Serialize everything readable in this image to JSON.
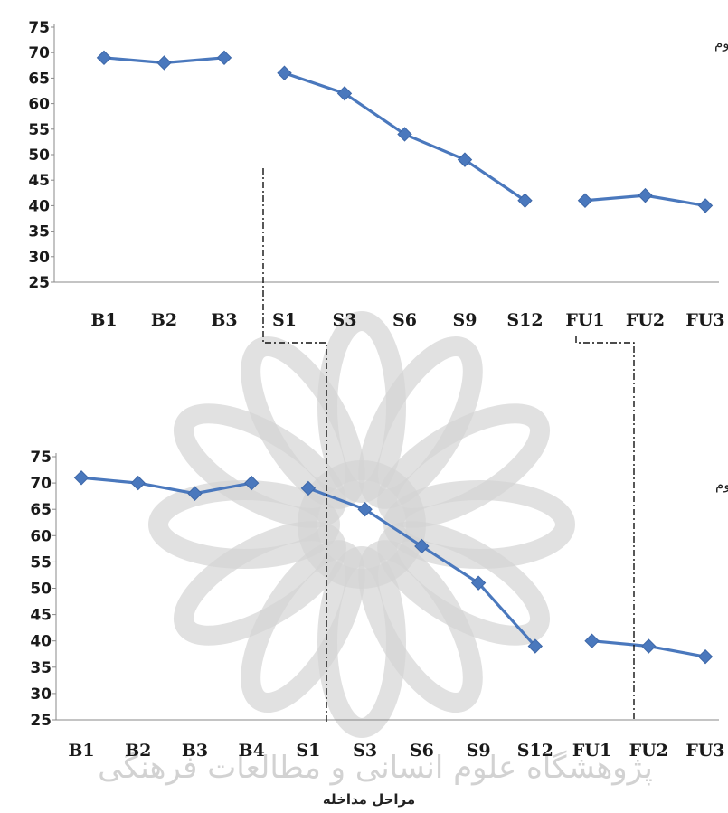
{
  "chart_data": [
    {
      "type": "line",
      "title": "بمار دوم",
      "ylim": [
        25,
        75
      ],
      "yticks": [
        75,
        70,
        65,
        60,
        55,
        50,
        45,
        40,
        35,
        30,
        25
      ],
      "categories": [
        "B1",
        "B2",
        "B3",
        "S1",
        "S3",
        "S6",
        "S9",
        "S12",
        "FU1",
        "FU2",
        "FU3"
      ],
      "segments": [
        {
          "categories": [
            "B1",
            "B2",
            "B3"
          ],
          "values": [
            69,
            68,
            69
          ]
        },
        {
          "categories": [
            "S1",
            "S3",
            "S6",
            "S9",
            "S12"
          ],
          "values": [
            66,
            62,
            54,
            49,
            41
          ]
        },
        {
          "categories": [
            "FU1",
            "FU2",
            "FU3"
          ],
          "values": [
            41,
            42,
            40
          ]
        }
      ],
      "grid": false,
      "color": "#4a78bd"
    },
    {
      "type": "line",
      "title": "بمار سوم",
      "xlabel": "مراحل مداخله",
      "ylim": [
        25,
        75
      ],
      "yticks": [
        75,
        70,
        65,
        60,
        55,
        50,
        45,
        40,
        35,
        30,
        25
      ],
      "categories": [
        "B1",
        "B2",
        "B3",
        "B4",
        "S1",
        "S3",
        "S6",
        "S9",
        "S12",
        "FU1",
        "FU2",
        "FU3"
      ],
      "segments": [
        {
          "categories": [
            "B1",
            "B2",
            "B3",
            "B4"
          ],
          "values": [
            71,
            70,
            68,
            70
          ]
        },
        {
          "categories": [
            "S1",
            "S3",
            "S6",
            "S9",
            "S12"
          ],
          "values": [
            69,
            65,
            58,
            51,
            39
          ]
        },
        {
          "categories": [
            "FU1",
            "FU2",
            "FU3"
          ],
          "values": [
            40,
            39,
            37
          ]
        }
      ],
      "grid": false,
      "color": "#4a78bd"
    }
  ],
  "watermark": {
    "text": "پژوهشگاه علوم انسانی و مطالعات فرهنگی"
  }
}
